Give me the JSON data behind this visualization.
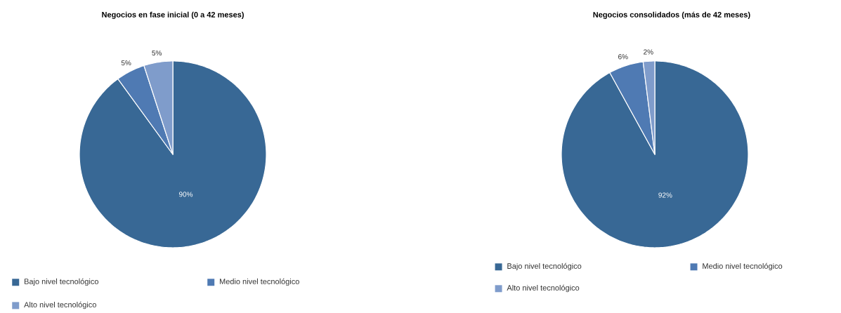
{
  "chart_data": [
    {
      "type": "pie",
      "title": "Negocios en fase inicial (0 a 42 meses)",
      "categories": [
        "Bajo nivel tecnológico",
        "Medio nivel tecnológico",
        "Alto nivel tecnológico"
      ],
      "values": [
        90,
        5,
        5
      ],
      "value_labels": [
        "90%",
        "5%",
        "5%"
      ],
      "colors": [
        "#386895",
        "#4f7ab3",
        "#7f9ccb"
      ],
      "legend": "bottom"
    },
    {
      "type": "pie",
      "title": "Negocios consolidados (más de 42 meses)",
      "categories": [
        "Bajo nivel tecnológico",
        "Medio nivel tecnológico",
        "Alto nivel tecnológico"
      ],
      "values": [
        92,
        6,
        2
      ],
      "value_labels": [
        "92%",
        "6%",
        "2%"
      ],
      "colors": [
        "#386895",
        "#4f7ab3",
        "#7f9ccb"
      ],
      "legend": "bottom"
    }
  ]
}
